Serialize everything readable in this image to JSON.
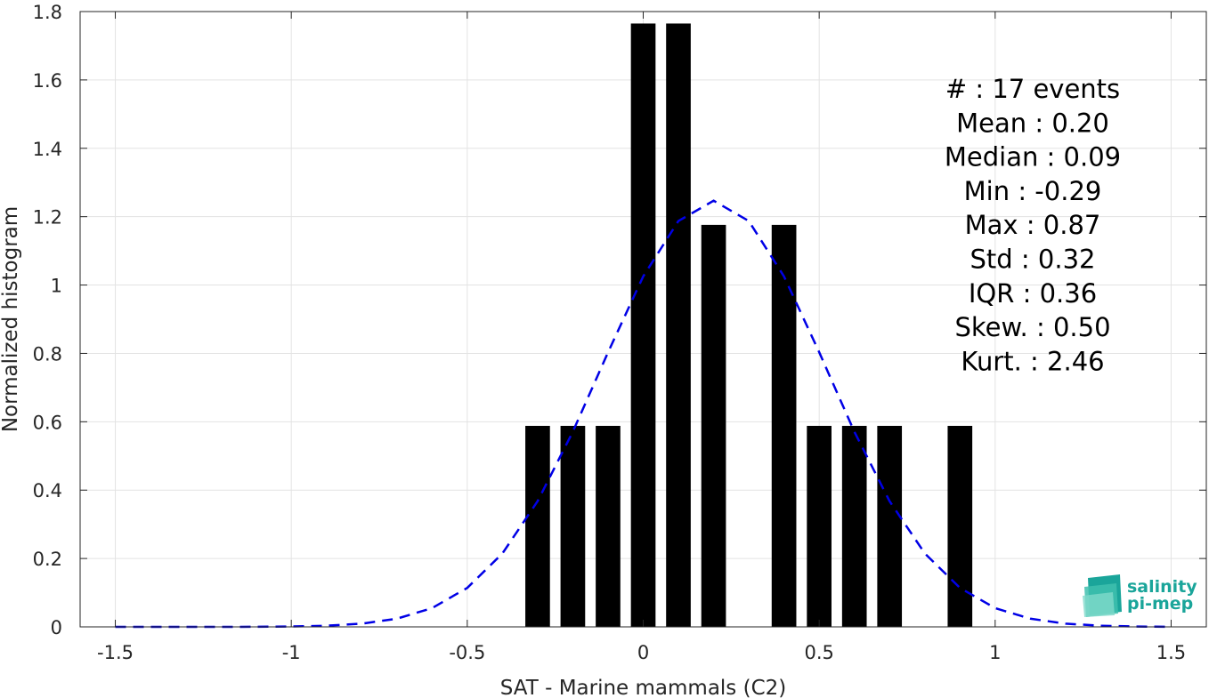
{
  "chart_data": {
    "type": "bar",
    "xlabel": "SAT - Marine mammals (C2)",
    "ylabel": "Normalized histogram",
    "xlim": [
      -1.6,
      1.6
    ],
    "ylim": [
      0,
      1.8
    ],
    "xticks": [
      -1.5,
      -1,
      -0.5,
      0,
      0.5,
      1,
      1.5
    ],
    "xtick_labels": [
      "-1.5",
      "-1",
      "-0.5",
      "0",
      "0.5",
      "1",
      "1.5"
    ],
    "yticks": [
      0,
      0.2,
      0.4,
      0.6,
      0.8,
      1,
      1.2,
      1.4,
      1.6,
      1.8
    ],
    "ytick_labels": [
      "0",
      "0.2",
      "0.4",
      "0.6",
      "0.8",
      "1",
      "1.2",
      "1.4",
      "1.6",
      "1.8"
    ],
    "grid": true,
    "bar_width": 0.07,
    "bars": [
      {
        "x": -0.3,
        "value": 0.588
      },
      {
        "x": -0.2,
        "value": 0.588
      },
      {
        "x": -0.1,
        "value": 0.588
      },
      {
        "x": 0.0,
        "value": 1.765
      },
      {
        "x": 0.1,
        "value": 1.765
      },
      {
        "x": 0.2,
        "value": 1.176
      },
      {
        "x": 0.4,
        "value": 1.176
      },
      {
        "x": 0.5,
        "value": 0.588
      },
      {
        "x": 0.6,
        "value": 0.588
      },
      {
        "x": 0.7,
        "value": 0.588
      },
      {
        "x": 0.9,
        "value": 0.588
      }
    ],
    "bar_color": "#000000",
    "fit_curve": {
      "style": "dashed",
      "color": "#0000e6",
      "mean": 0.2,
      "std": 0.32,
      "x_range": [
        -1.5,
        1.5
      ]
    },
    "stats_lines": [
      "#  : 17 events",
      "Mean : 0.20",
      "Median : 0.09",
      "Min : -0.29",
      "Max : 0.87",
      "Std : 0.32",
      "IQR : 0.36",
      "Skew. : 0.50",
      "Kurt. : 2.46"
    ]
  },
  "logo": {
    "line1": "salinity",
    "line2": "pi-mep"
  }
}
